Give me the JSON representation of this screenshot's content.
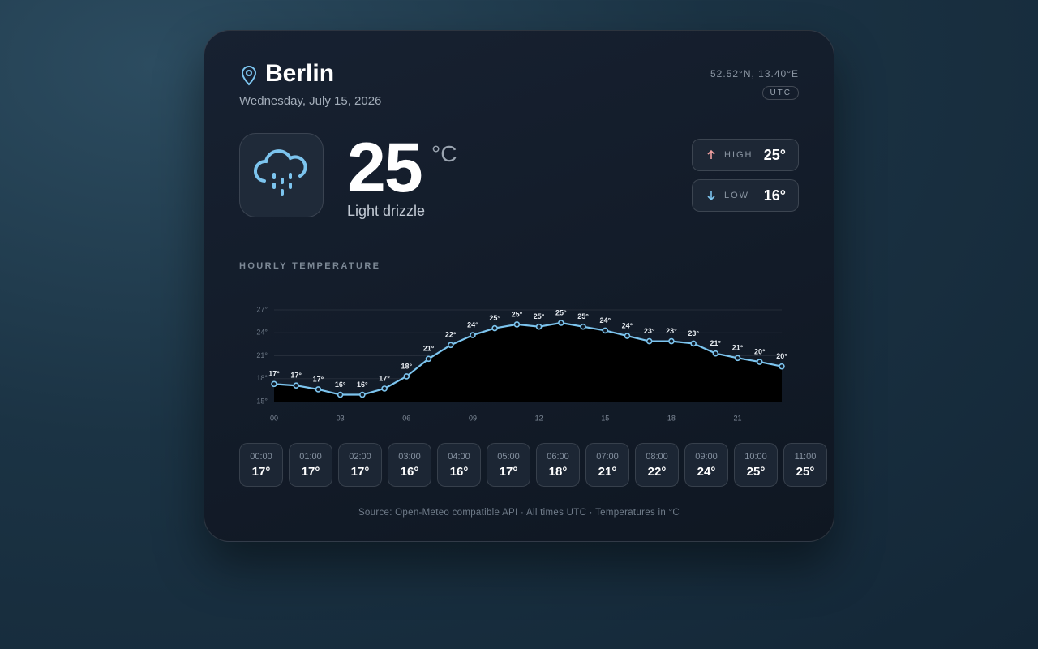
{
  "location": {
    "city": "Berlin",
    "date": "Wednesday, July 15, 2026",
    "coords": "52.52°N, 13.40°E",
    "timezone": "UTC"
  },
  "current": {
    "temp": "25",
    "unit": "°C",
    "condition": "Light drizzle",
    "high_label": "HIGH",
    "high": "25°",
    "low_label": "LOW",
    "low": "16°"
  },
  "section_title": "HOURLY TEMPERATURE",
  "chart_data": {
    "type": "line",
    "color": "#7cc4ee",
    "area_color": "#000000",
    "grid": true,
    "categories": [
      "00",
      null,
      null,
      "03",
      null,
      null,
      "06",
      null,
      null,
      "09",
      null,
      null,
      "12",
      null,
      null,
      "15",
      null,
      null,
      "18",
      null,
      null,
      "21",
      null,
      null
    ],
    "values": [
      17.3,
      17.1,
      16.6,
      15.9,
      15.9,
      16.7,
      18.3,
      20.6,
      22.4,
      23.7,
      24.6,
      25.1,
      24.8,
      25.3,
      24.8,
      24.3,
      23.6,
      22.9,
      22.9,
      22.6,
      21.3,
      20.7,
      20.2,
      19.6
    ],
    "value_labels": [
      "17°",
      "17°",
      "17°",
      "16°",
      "16°",
      "17°",
      "18°",
      "21°",
      "22°",
      "24°",
      "25°",
      "25°",
      "25°",
      "25°",
      "25°",
      "24°",
      "24°",
      "23°",
      "23°",
      "23°",
      "21°",
      "21°",
      "20°",
      "20°"
    ],
    "ylim": [
      15,
      27
    ],
    "yticks": [
      {
        "value": 15,
        "label": "15°"
      },
      {
        "value": 18,
        "label": "18°"
      },
      {
        "value": 21,
        "label": "21°"
      },
      {
        "value": 24,
        "label": "24°"
      },
      {
        "value": 27,
        "label": "27°"
      }
    ]
  },
  "hourly": [
    {
      "time": "00:00",
      "temp": "17°"
    },
    {
      "time": "01:00",
      "temp": "17°"
    },
    {
      "time": "02:00",
      "temp": "17°"
    },
    {
      "time": "03:00",
      "temp": "16°"
    },
    {
      "time": "04:00",
      "temp": "16°"
    },
    {
      "time": "05:00",
      "temp": "17°"
    },
    {
      "time": "06:00",
      "temp": "18°"
    },
    {
      "time": "07:00",
      "temp": "21°"
    },
    {
      "time": "08:00",
      "temp": "22°"
    },
    {
      "time": "09:00",
      "temp": "24°"
    },
    {
      "time": "10:00",
      "temp": "25°"
    },
    {
      "time": "11:00",
      "temp": "25°"
    }
  ],
  "footer": "Source: Open-Meteo compatible API · All times UTC · Temperatures in °C"
}
